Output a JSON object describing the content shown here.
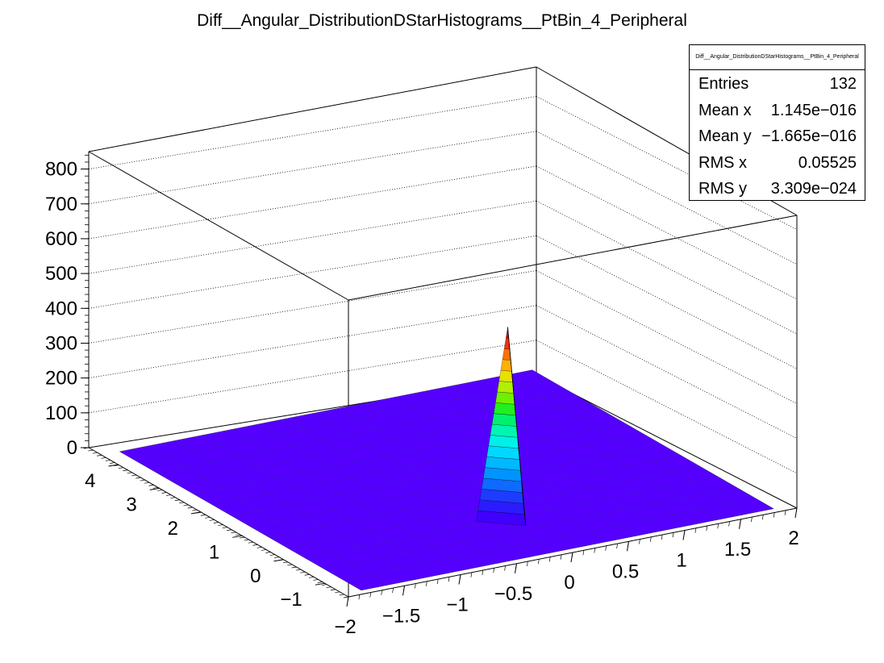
{
  "chart_data": {
    "type": "lego2d-surface",
    "title": "Diff__Angular_DistributionDStarHistograms__PtBin_4_Peripheral",
    "x_ticks": [
      "−2",
      "−1.5",
      "−1",
      "−0.5",
      "0",
      "0.5",
      "1",
      "1.5",
      "2"
    ],
    "x_range": [
      -2,
      2
    ],
    "y_ticks": [
      "−1",
      "0",
      "1",
      "2",
      "3",
      "4"
    ],
    "y_range": [
      -1.5708,
      4.7124
    ],
    "z_ticks": [
      "0",
      "100",
      "200",
      "300",
      "400",
      "500",
      "600",
      "700",
      "800"
    ],
    "z_range": [
      0,
      850
    ],
    "peak": {
      "x": 0,
      "y": 0,
      "z": 540
    },
    "floor_color": "#5500ff",
    "palette": [
      "#3f00ff",
      "#2b1bff",
      "#1d3cff",
      "#0f6aff",
      "#0094ff",
      "#00b8ff",
      "#00d8ff",
      "#00f0e8",
      "#00f5b0",
      "#00f070",
      "#20f020",
      "#70f000",
      "#b0f000",
      "#e8e000",
      "#ffb000",
      "#ff7000",
      "#f03010",
      "#c00000"
    ]
  },
  "stats": {
    "name": "Diff__Angular_DistributionDStarHistograms__PtBin_4_Peripheral",
    "rows": [
      {
        "label": "Entries",
        "value": "132"
      },
      {
        "label": "Mean x",
        "value": "1.145e−016"
      },
      {
        "label": "Mean y",
        "value": "−1.665e−016"
      },
      {
        "label": "RMS x",
        "value": "0.05525"
      },
      {
        "label": "RMS y",
        "value": "3.309e−024"
      }
    ]
  }
}
